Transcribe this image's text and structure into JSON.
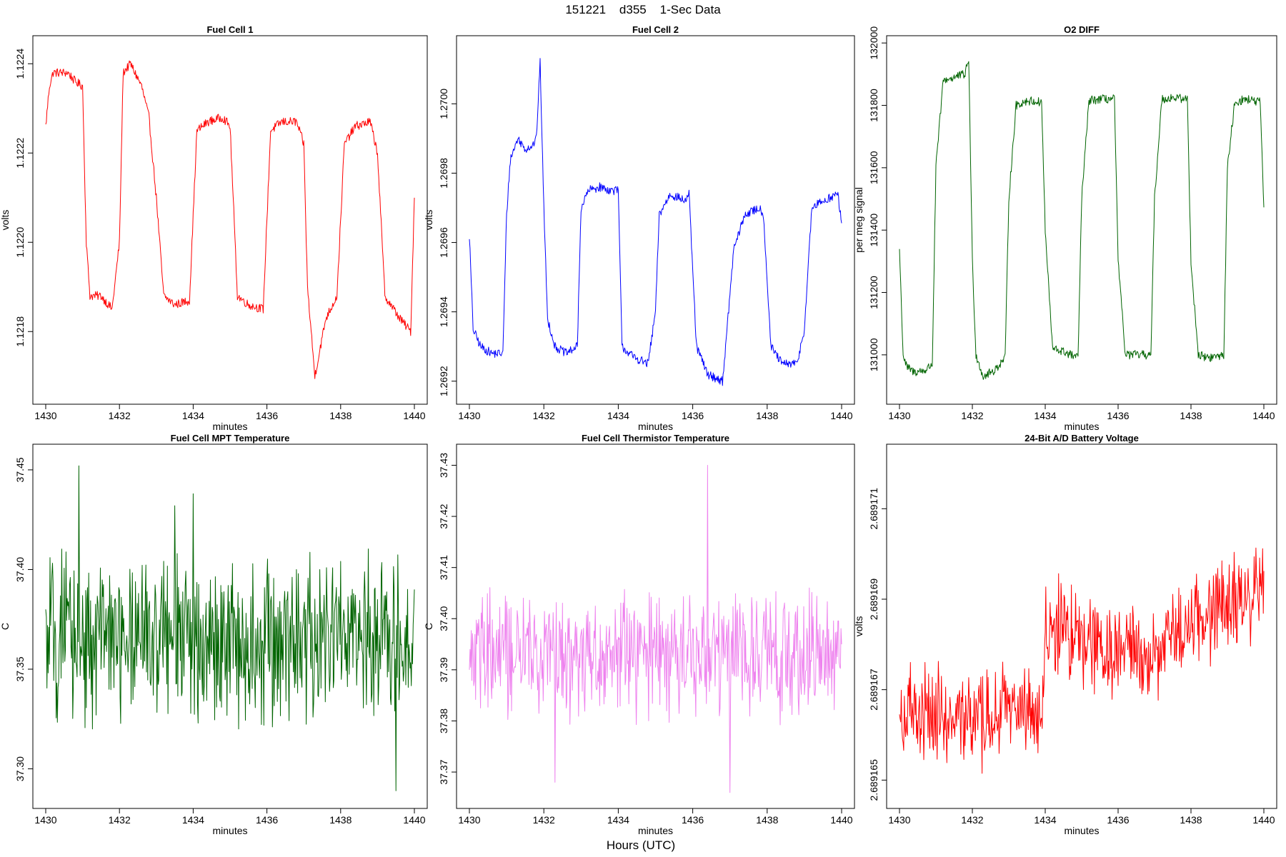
{
  "figure": {
    "title": "151221    d355    1-Sec Data",
    "xlabel_main": "Hours (UTC)"
  },
  "chart_data": [
    {
      "type": "line",
      "title": "Fuel Cell 1",
      "xlabel": "minutes",
      "ylabel": "volts",
      "color": "#ff0000",
      "xlim": [
        1430,
        1440
      ],
      "ylim": [
        1.12165,
        1.12245
      ],
      "xticks": [
        1430,
        1432,
        1434,
        1436,
        1438,
        1440
      ],
      "yticks": [
        1.1218,
        1.122,
        1.1222,
        1.1224
      ],
      "ytick_labels": [
        "1.1218",
        "1.1220",
        "1.1222",
        "1.1224"
      ],
      "pattern": "square",
      "levels": [
        1.12236,
        1.12187
      ],
      "transitions": [
        1431.0,
        1432.0,
        1433.0,
        1434.0,
        1435.0,
        1436.0,
        1437.0,
        1438.0,
        1439.0
      ],
      "noise": 2.5e-05,
      "x": [
        1430.0,
        1430.1,
        1430.2,
        1430.4,
        1430.6,
        1430.8,
        1431.0,
        1431.1,
        1431.2,
        1431.5,
        1431.8,
        1432.0,
        1432.1,
        1432.3,
        1432.6,
        1432.8,
        1433.0,
        1433.2,
        1433.5,
        1433.9,
        1434.1,
        1434.4,
        1434.8,
        1435.0,
        1435.2,
        1435.5,
        1435.9,
        1436.1,
        1436.4,
        1436.8,
        1437.0,
        1437.1,
        1437.3,
        1437.6,
        1437.9,
        1438.1,
        1438.4,
        1438.8,
        1439.0,
        1439.2,
        1439.6,
        1439.9,
        1440.0
      ],
      "y": [
        1.12226,
        1.12235,
        1.12238,
        1.12238,
        1.12238,
        1.12236,
        1.12235,
        1.122,
        1.12188,
        1.12188,
        1.12185,
        1.122,
        1.12238,
        1.1224,
        1.12235,
        1.12228,
        1.1221,
        1.12188,
        1.12186,
        1.12187,
        1.12225,
        1.12227,
        1.12228,
        1.12226,
        1.12188,
        1.12186,
        1.12185,
        1.12225,
        1.12227,
        1.12227,
        1.12222,
        1.1219,
        1.1217,
        1.12183,
        1.12188,
        1.12222,
        1.12226,
        1.12227,
        1.1222,
        1.12188,
        1.12183,
        1.1218,
        1.1221
      ]
    },
    {
      "type": "line",
      "title": "Fuel Cell 2",
      "xlabel": "minutes",
      "ylabel": "volts",
      "color": "#0000ff",
      "xlim": [
        1430,
        1440
      ],
      "ylim": [
        1.26915,
        1.27018
      ],
      "xticks": [
        1430,
        1432,
        1434,
        1436,
        1438,
        1440
      ],
      "yticks": [
        1.2692,
        1.2694,
        1.2696,
        1.2698,
        1.27
      ],
      "ytick_labels": [
        "1.2692",
        "1.2694",
        "1.2696",
        "1.2698",
        "1.2700"
      ],
      "x": [
        1430.0,
        1430.1,
        1430.3,
        1430.6,
        1430.9,
        1431.0,
        1431.1,
        1431.3,
        1431.5,
        1431.7,
        1431.8,
        1431.9,
        1432.0,
        1432.1,
        1432.3,
        1432.6,
        1432.9,
        1433.0,
        1433.2,
        1433.5,
        1433.8,
        1434.0,
        1434.1,
        1434.4,
        1434.8,
        1435.0,
        1435.1,
        1435.4,
        1435.8,
        1435.9,
        1436.1,
        1436.4,
        1436.8,
        1436.9,
        1437.1,
        1437.4,
        1437.8,
        1437.9,
        1438.1,
        1438.4,
        1438.8,
        1439.0,
        1439.2,
        1439.5,
        1439.9,
        1440.0
      ],
      "y": [
        1.26962,
        1.26935,
        1.2693,
        1.26928,
        1.26928,
        1.26968,
        1.26984,
        1.2699,
        1.26987,
        1.26988,
        1.2699,
        1.27012,
        1.2697,
        1.26938,
        1.2693,
        1.26928,
        1.2693,
        1.2697,
        1.26975,
        1.26976,
        1.26975,
        1.26975,
        1.2693,
        1.26927,
        1.26925,
        1.2694,
        1.26968,
        1.26974,
        1.26972,
        1.26974,
        1.2693,
        1.26922,
        1.2692,
        1.26932,
        1.26958,
        1.26968,
        1.2697,
        1.26968,
        1.2693,
        1.26925,
        1.26925,
        1.26935,
        1.2697,
        1.26972,
        1.26974,
        1.26965
      ]
    },
    {
      "type": "line",
      "title": "O2 DIFF",
      "xlabel": "minutes",
      "ylabel": "per meg signal",
      "color": "#006400",
      "xlim": [
        1430,
        1440
      ],
      "ylim": [
        130860,
        132005
      ],
      "xticks": [
        1430,
        1432,
        1434,
        1436,
        1438,
        1440
      ],
      "yticks": [
        131000,
        131200,
        131400,
        131600,
        131800,
        132000
      ],
      "ytick_labels": [
        "131000",
        "131200",
        "131400",
        "131600",
        "131800",
        "132000"
      ],
      "x": [
        1430.0,
        1430.1,
        1430.2,
        1430.4,
        1430.7,
        1430.9,
        1431.0,
        1431.2,
        1431.5,
        1431.8,
        1431.9,
        1432.0,
        1432.1,
        1432.3,
        1432.6,
        1432.9,
        1433.0,
        1433.2,
        1433.5,
        1433.9,
        1434.0,
        1434.2,
        1434.5,
        1434.9,
        1435.0,
        1435.2,
        1435.5,
        1435.9,
        1436.0,
        1436.2,
        1436.5,
        1436.9,
        1437.0,
        1437.2,
        1437.5,
        1437.9,
        1438.0,
        1438.2,
        1438.5,
        1438.9,
        1439.0,
        1439.2,
        1439.5,
        1439.9,
        1440.0
      ],
      "y": [
        131340,
        131000,
        130960,
        130945,
        130950,
        130970,
        131600,
        131880,
        131890,
        131900,
        131950,
        131300,
        131000,
        130930,
        130950,
        130990,
        131500,
        131800,
        131815,
        131810,
        131400,
        131020,
        131010,
        130990,
        131500,
        131815,
        131820,
        131820,
        131300,
        131000,
        131000,
        131000,
        131500,
        131820,
        131825,
        131820,
        131300,
        131000,
        130990,
        131000,
        131600,
        131810,
        131820,
        131810,
        131460
      ]
    },
    {
      "type": "line",
      "title": "Fuel Cell MPT Temperature",
      "xlabel": "minutes",
      "ylabel": "C",
      "color": "#006400",
      "xlim": [
        1430,
        1440
      ],
      "ylim": [
        37.283,
        37.46
      ],
      "xticks": [
        1430,
        1432,
        1434,
        1436,
        1438,
        1440
      ],
      "yticks": [
        37.3,
        37.35,
        37.4,
        37.45
      ],
      "ytick_labels": [
        "37.30",
        "37.35",
        "37.40",
        "37.45"
      ],
      "pattern": "noise",
      "mean": 37.365,
      "spread": 0.03,
      "x": [
        1430.0,
        1430.9,
        1431.5,
        1433.5,
        1434.0,
        1436.8,
        1439.2,
        1439.5,
        1440.0
      ],
      "y": [
        37.38,
        37.452,
        37.35,
        37.432,
        37.438,
        37.4,
        37.36,
        37.289,
        37.39
      ]
    },
    {
      "type": "line",
      "title": "Fuel Cell Thermistor Temperature",
      "xlabel": "minutes",
      "ylabel": "C",
      "color": "#ee82ee",
      "xlim": [
        1430,
        1440
      ],
      "ylim": [
        37.364,
        37.433
      ],
      "xticks": [
        1430,
        1432,
        1434,
        1436,
        1438,
        1440
      ],
      "yticks": [
        37.37,
        37.38,
        37.39,
        37.4,
        37.41,
        37.42,
        37.43
      ],
      "ytick_labels": [
        "37.37",
        "37.38",
        "37.39",
        "37.40",
        "37.41",
        "37.42",
        "37.43"
      ],
      "pattern": "noise",
      "mean": 37.393,
      "spread": 0.009,
      "x": [
        1430.0,
        1432.3,
        1436.4,
        1437.0,
        1440.0
      ],
      "y": [
        37.39,
        37.368,
        37.43,
        37.366,
        37.395
      ]
    },
    {
      "type": "line",
      "title": "24-Bit A/D Battery Voltage",
      "xlabel": "minutes",
      "ylabel": "volts",
      "color": "#ff0000",
      "xlim": [
        1430,
        1440
      ],
      "ylim": [
        2.6891645,
        2.6891723
      ],
      "xticks": [
        1430,
        1432,
        1434,
        1436,
        1438,
        1440
      ],
      "yticks": [
        2.689165,
        2.689167,
        2.689169,
        2.689171
      ],
      "ytick_labels": [
        "2.689165",
        "2.689167",
        "2.689169",
        "2.689171"
      ],
      "pattern": "noise",
      "spread": 8e-07,
      "x": [
        1430.0,
        1431.0,
        1432.0,
        1433.0,
        1433.9,
        1434.0,
        1435.0,
        1436.0,
        1437.0,
        1438.0,
        1439.0,
        1440.0
      ],
      "y": [
        2.6891663,
        2.6891665,
        2.6891662,
        2.6891666,
        2.6891665,
        2.6891683,
        2.6891683,
        2.6891678,
        2.6891677,
        2.6891686,
        2.6891688,
        2.6891694
      ]
    }
  ]
}
